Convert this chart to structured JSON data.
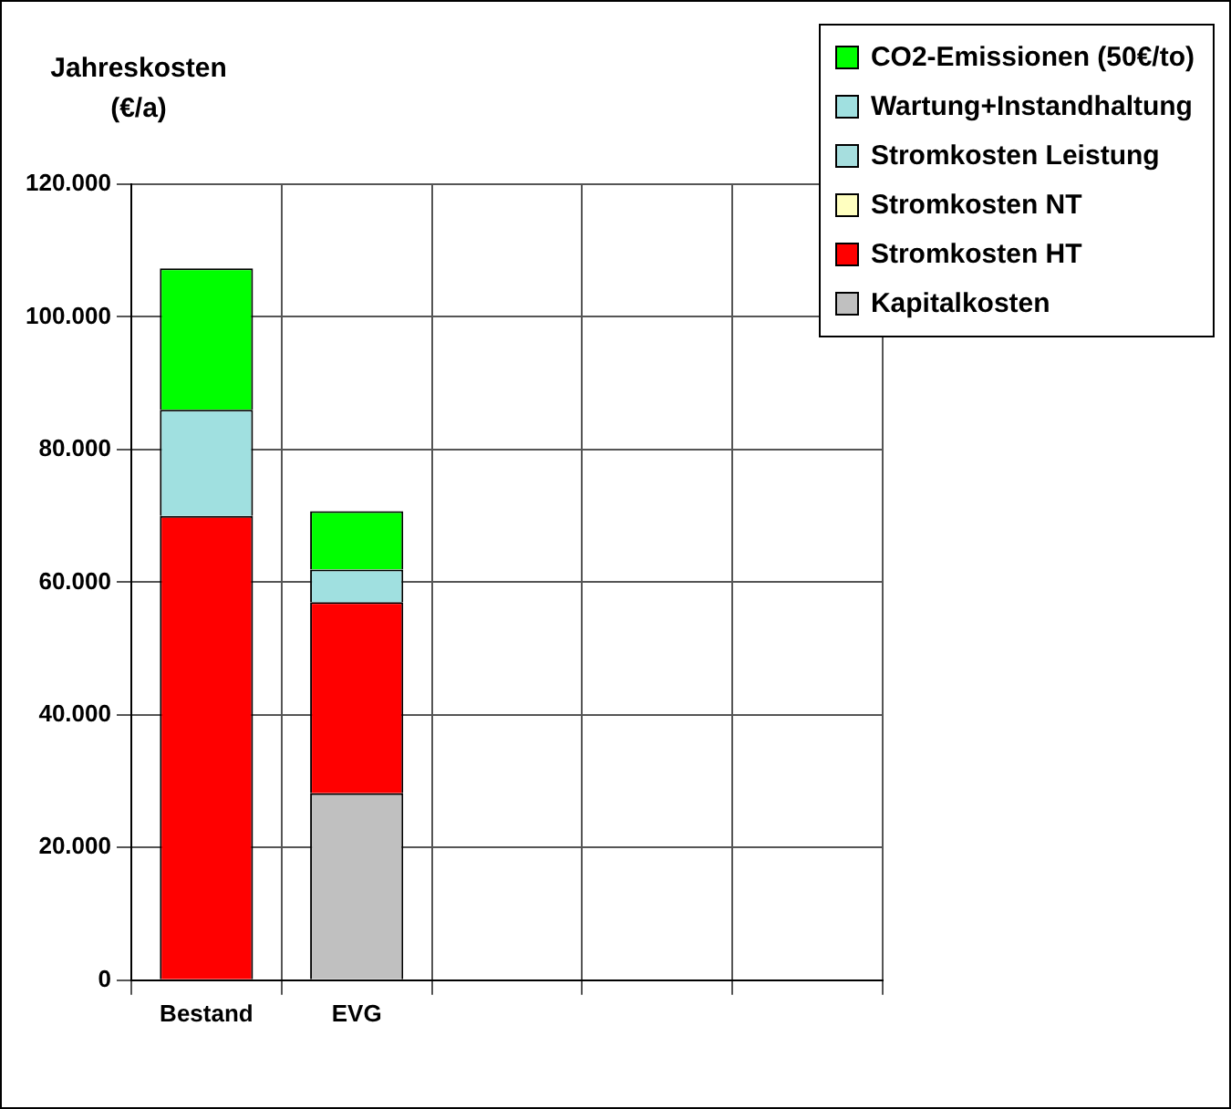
{
  "chart_data": {
    "type": "bar",
    "stacked": true,
    "ylabel": "Jahreskosten (€/a)",
    "categories": [
      "Bestand",
      "EVG",
      null,
      null,
      null
    ],
    "series": [
      {
        "name": "Kapitalkosten",
        "color": "#c0c0c0",
        "values": [
          0,
          28200,
          null,
          null,
          null
        ]
      },
      {
        "name": "Stromkosten HT",
        "color": "#ff0000",
        "values": [
          70000,
          28800,
          null,
          null,
          null
        ]
      },
      {
        "name": "Stromkosten NT",
        "color": "#ffffc0",
        "values": [
          0,
          0,
          null,
          null,
          null
        ]
      },
      {
        "name": "Stromkosten Leistung",
        "color": "#a6dede",
        "values": [
          0,
          0,
          null,
          null,
          null
        ]
      },
      {
        "name": "Wartung+Instandhaltung",
        "color": "#a0e0e0",
        "values": [
          16000,
          4900,
          null,
          null,
          null
        ]
      },
      {
        "name": "CO2-Emissionen (50€/to)",
        "color": "#00ff00",
        "values": [
          21300,
          8800,
          null,
          null,
          null
        ]
      }
    ],
    "ylim": [
      0,
      120000
    ],
    "yticks": [
      {
        "value": 0,
        "label": "0"
      },
      {
        "value": 20000,
        "label": "20.000"
      },
      {
        "value": 40000,
        "label": "40.000"
      },
      {
        "value": 60000,
        "label": "60.000"
      },
      {
        "value": 80000,
        "label": "80.000"
      },
      {
        "value": 100000,
        "label": "100.000"
      },
      {
        "value": 120000,
        "label": "120.000"
      }
    ],
    "grid": true,
    "legend": "top right"
  }
}
